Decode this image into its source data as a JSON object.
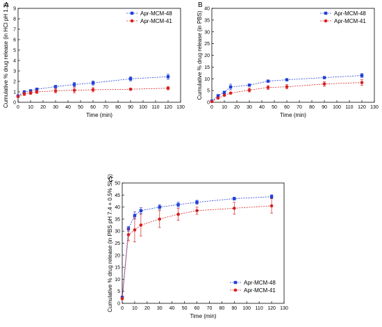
{
  "colors": {
    "series_1": "#1f3fd6",
    "series_2": "#d62020"
  },
  "chart_data": [
    {
      "panel": "A",
      "type": "line",
      "xlabel": "Time (min)",
      "ylabel": "Cumulative % drug release (in HCl pH 1.2)",
      "xlim": [
        0,
        130
      ],
      "ylim": [
        0,
        9
      ],
      "xticks": [
        0,
        10,
        20,
        30,
        40,
        50,
        60,
        70,
        80,
        90,
        100,
        110,
        120,
        130
      ],
      "yticks": [
        0,
        1,
        2,
        3,
        4,
        5,
        6,
        7,
        8,
        9
      ],
      "legend_position": "top-right",
      "series": [
        {
          "name": "Apr-MCM-48",
          "x": [
            0,
            5,
            10,
            15,
            30,
            45,
            60,
            90,
            120
          ],
          "y": [
            0.6,
            1.0,
            1.1,
            1.25,
            1.5,
            1.7,
            1.85,
            2.25,
            2.45
          ],
          "err": [
            0.05,
            0.1,
            0.1,
            0.1,
            0.12,
            0.2,
            0.2,
            0.2,
            0.25
          ]
        },
        {
          "name": "Apr-MCM-41",
          "x": [
            0,
            5,
            10,
            15,
            30,
            45,
            60,
            90,
            120
          ],
          "y": [
            0.55,
            0.8,
            0.9,
            1.0,
            1.1,
            1.15,
            1.2,
            1.25,
            1.35
          ],
          "err": [
            0.05,
            0.15,
            0.15,
            0.15,
            0.2,
            0.25,
            0.2,
            0.1,
            0.15
          ]
        }
      ]
    },
    {
      "panel": "B",
      "type": "line",
      "xlabel": "Time (min)",
      "ylabel": "Cumulative % drug release (in PBS)",
      "xlim": [
        0,
        130
      ],
      "ylim": [
        0,
        40
      ],
      "xticks": [
        0,
        10,
        20,
        30,
        40,
        50,
        60,
        70,
        80,
        90,
        100,
        110,
        120,
        130
      ],
      "yticks": [
        0,
        5,
        10,
        15,
        20,
        25,
        30,
        35,
        40
      ],
      "legend_position": "top-right",
      "series": [
        {
          "name": "Apr-MCM-48",
          "x": [
            0,
            5,
            10,
            15,
            30,
            45,
            60,
            90,
            120
          ],
          "y": [
            0.5,
            2.8,
            4.2,
            6.5,
            7.3,
            9.0,
            9.6,
            10.5,
            11.4
          ],
          "err": [
            0.1,
            0.3,
            0.5,
            1.2,
            0.4,
            0.5,
            0.5,
            0.5,
            0.8
          ]
        },
        {
          "name": "Apr-MCM-41",
          "x": [
            0,
            5,
            10,
            15,
            30,
            45,
            60,
            90,
            120
          ],
          "y": [
            0.3,
            1.8,
            3.0,
            3.9,
            5.2,
            6.3,
            6.6,
            7.8,
            8.4
          ],
          "err": [
            0.1,
            0.3,
            0.4,
            0.4,
            0.8,
            0.8,
            0.9,
            1.0,
            1.2
          ]
        }
      ]
    },
    {
      "panel": "C",
      "type": "line",
      "xlabel": "Time (min)",
      "ylabel": "Cumulative % drug release (in PBS pH 7.4 + 0.5% SLS)",
      "xlim": [
        0,
        130
      ],
      "ylim": [
        0,
        50
      ],
      "xticks": [
        0,
        10,
        20,
        30,
        40,
        50,
        60,
        70,
        80,
        90,
        100,
        110,
        120,
        130
      ],
      "yticks": [
        0,
        5,
        10,
        15,
        20,
        25,
        30,
        35,
        40,
        45,
        50
      ],
      "legend_position": "bottom-right",
      "series": [
        {
          "name": "Apr-MCM-48",
          "x": [
            0,
            5,
            10,
            15,
            30,
            45,
            60,
            90,
            120
          ],
          "y": [
            2.5,
            31.0,
            36.5,
            38.5,
            40.0,
            41.0,
            42.0,
            43.5,
            44.3
          ],
          "err": [
            0.5,
            1.0,
            1.5,
            1.2,
            1.0,
            1.0,
            0.8,
            0.6,
            0.8
          ]
        },
        {
          "name": "Apr-MCM-41",
          "x": [
            0,
            5,
            10,
            15,
            30,
            45,
            60,
            90,
            120
          ],
          "y": [
            2.0,
            28.5,
            30.5,
            32.5,
            35.0,
            37.0,
            38.5,
            39.5,
            40.5
          ],
          "err": [
            0.5,
            2.5,
            5.0,
            4.5,
            3.5,
            2.5,
            1.5,
            2.5,
            3.0
          ]
        }
      ]
    }
  ]
}
